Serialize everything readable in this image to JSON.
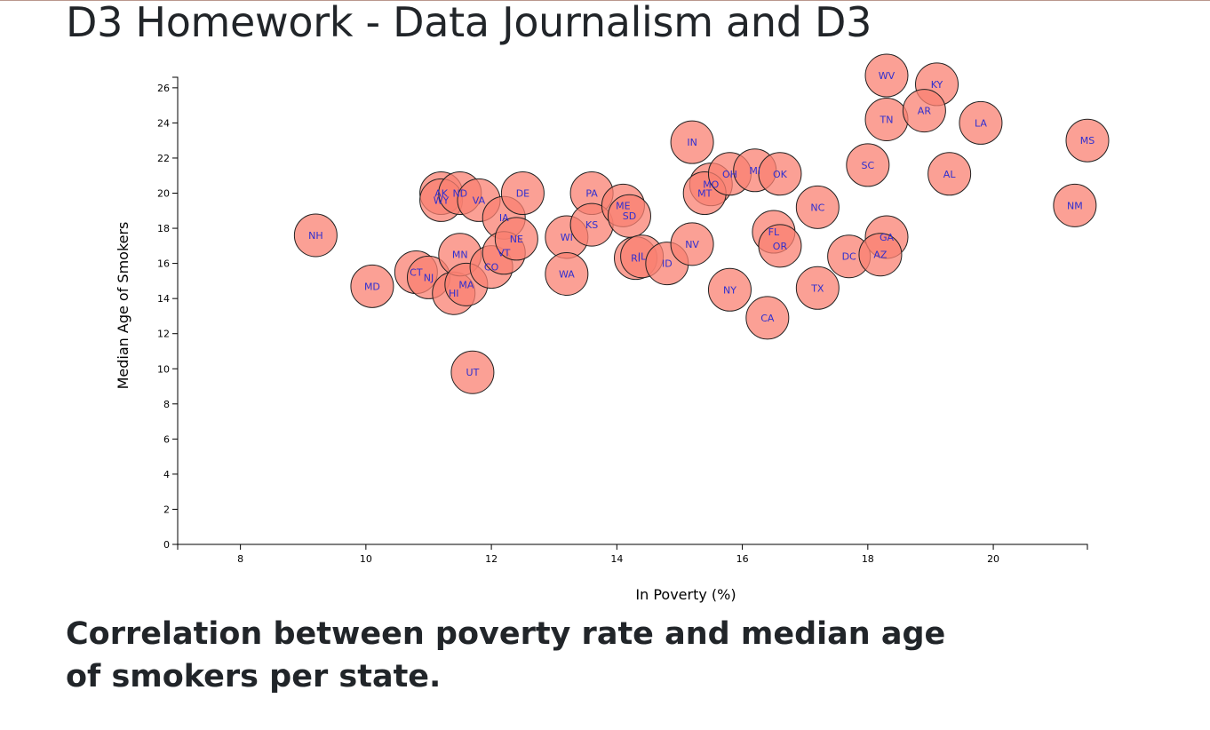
{
  "page": {
    "title": "D3 Homework - Data Journalism and D3",
    "caption": "Correlation between poverty rate and median age of smokers per state."
  },
  "colors": {
    "circle_fill": "#fa8072",
    "circle_stroke": "#222222",
    "label": "#2f2fd0",
    "text": "#212529"
  },
  "chart_data": {
    "type": "scatter",
    "title": "",
    "xlabel": "In Poverty (%)",
    "ylabel": "Median Age of Smokers",
    "xlim": [
      7,
      21.5
    ],
    "ylim": [
      0,
      26.6
    ],
    "xticks": [
      8,
      10,
      12,
      14,
      16,
      18,
      20
    ],
    "yticks": [
      0,
      2,
      4,
      6,
      8,
      10,
      12,
      14,
      16,
      18,
      20,
      22,
      24,
      26
    ],
    "grid": false,
    "points": [
      {
        "abbr": "NH",
        "x": 9.2,
        "y": 17.6
      },
      {
        "abbr": "MD",
        "x": 10.1,
        "y": 14.7
      },
      {
        "abbr": "CT",
        "x": 10.8,
        "y": 15.5
      },
      {
        "abbr": "NJ",
        "x": 11.0,
        "y": 15.2
      },
      {
        "abbr": "AK",
        "x": 11.2,
        "y": 20.0
      },
      {
        "abbr": "WY",
        "x": 11.2,
        "y": 19.6
      },
      {
        "abbr": "ND",
        "x": 11.5,
        "y": 20.0
      },
      {
        "abbr": "HI",
        "x": 11.4,
        "y": 14.3
      },
      {
        "abbr": "MN",
        "x": 11.5,
        "y": 16.5
      },
      {
        "abbr": "MA",
        "x": 11.6,
        "y": 14.8
      },
      {
        "abbr": "VA",
        "x": 11.8,
        "y": 19.6
      },
      {
        "abbr": "UT",
        "x": 11.7,
        "y": 9.8
      },
      {
        "abbr": "CO",
        "x": 12.0,
        "y": 15.8
      },
      {
        "abbr": "IA",
        "x": 12.2,
        "y": 18.6
      },
      {
        "abbr": "VT",
        "x": 12.2,
        "y": 16.6
      },
      {
        "abbr": "NE",
        "x": 12.4,
        "y": 17.4
      },
      {
        "abbr": "DE",
        "x": 12.5,
        "y": 20.0
      },
      {
        "abbr": "WI",
        "x": 13.2,
        "y": 17.5
      },
      {
        "abbr": "WA",
        "x": 13.2,
        "y": 15.4
      },
      {
        "abbr": "PA",
        "x": 13.6,
        "y": 20.0
      },
      {
        "abbr": "KS",
        "x": 13.6,
        "y": 18.2
      },
      {
        "abbr": "ME",
        "x": 14.1,
        "y": 19.3
      },
      {
        "abbr": "SD",
        "x": 14.2,
        "y": 18.7
      },
      {
        "abbr": "RI",
        "x": 14.3,
        "y": 16.3
      },
      {
        "abbr": "IL",
        "x": 14.4,
        "y": 16.4
      },
      {
        "abbr": "ID",
        "x": 14.8,
        "y": 16.0
      },
      {
        "abbr": "IN",
        "x": 15.2,
        "y": 22.9
      },
      {
        "abbr": "NV",
        "x": 15.2,
        "y": 17.1
      },
      {
        "abbr": "MO",
        "x": 15.5,
        "y": 20.5
      },
      {
        "abbr": "MT",
        "x": 15.4,
        "y": 20.0
      },
      {
        "abbr": "OH",
        "x": 15.8,
        "y": 21.1
      },
      {
        "abbr": "NY",
        "x": 15.8,
        "y": 14.5
      },
      {
        "abbr": "MI",
        "x": 16.2,
        "y": 21.3
      },
      {
        "abbr": "OK",
        "x": 16.6,
        "y": 21.1
      },
      {
        "abbr": "FL",
        "x": 16.5,
        "y": 17.8
      },
      {
        "abbr": "OR",
        "x": 16.6,
        "y": 17.0
      },
      {
        "abbr": "CA",
        "x": 16.4,
        "y": 12.9
      },
      {
        "abbr": "NC",
        "x": 17.2,
        "y": 19.2
      },
      {
        "abbr": "TX",
        "x": 17.2,
        "y": 14.6
      },
      {
        "abbr": "DC",
        "x": 17.7,
        "y": 16.4
      },
      {
        "abbr": "SC",
        "x": 18.0,
        "y": 21.6
      },
      {
        "abbr": "WV",
        "x": 18.3,
        "y": 26.7
      },
      {
        "abbr": "TN",
        "x": 18.3,
        "y": 24.2
      },
      {
        "abbr": "GA",
        "x": 18.3,
        "y": 17.5
      },
      {
        "abbr": "AZ",
        "x": 18.2,
        "y": 16.5
      },
      {
        "abbr": "KY",
        "x": 19.1,
        "y": 26.2
      },
      {
        "abbr": "AR",
        "x": 18.9,
        "y": 24.7
      },
      {
        "abbr": "AL",
        "x": 19.3,
        "y": 21.1
      },
      {
        "abbr": "LA",
        "x": 19.8,
        "y": 24.0
      },
      {
        "abbr": "NM",
        "x": 21.3,
        "y": 19.3
      },
      {
        "abbr": "MS",
        "x": 21.5,
        "y": 23.0
      }
    ]
  }
}
